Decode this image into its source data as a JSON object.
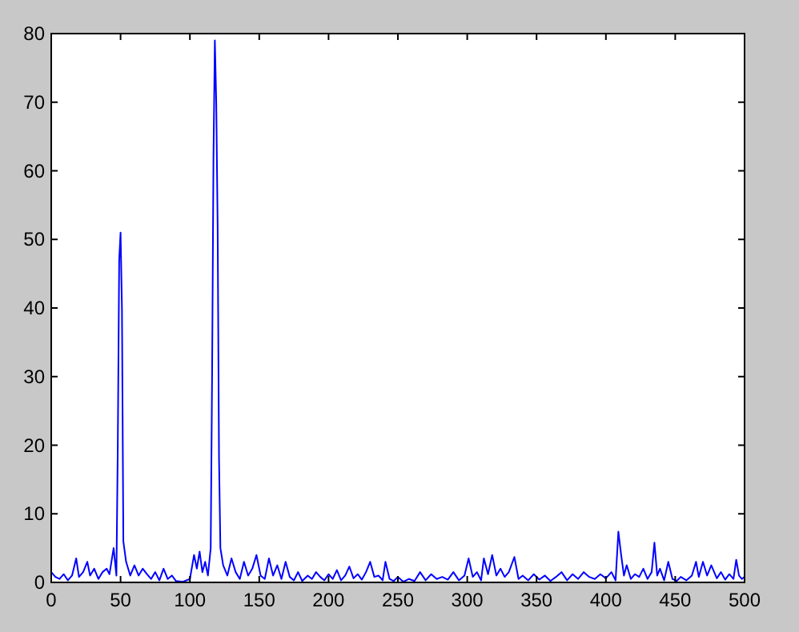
{
  "chart_data": {
    "type": "line",
    "xlim": [
      0,
      500
    ],
    "ylim": [
      0,
      80
    ],
    "xticks": [
      0,
      50,
      100,
      150,
      200,
      250,
      300,
      350,
      400,
      450,
      500
    ],
    "yticks": [
      0,
      10,
      20,
      30,
      40,
      50,
      60,
      70,
      80
    ],
    "grid": false,
    "marker": "none",
    "line_style": "solid",
    "series": [
      {
        "color": "#0000ff",
        "x": [
          0,
          3,
          6,
          9,
          12,
          15,
          18,
          20,
          23,
          26,
          28,
          31,
          34,
          37,
          40,
          42,
          45,
          47,
          48,
          49,
          50,
          51,
          52,
          54,
          57,
          60,
          63,
          66,
          69,
          72,
          75,
          78,
          81,
          84,
          87,
          90,
          95,
          100,
          103,
          105,
          107,
          109,
          111,
          113,
          115,
          116,
          117,
          118,
          119,
          120,
          121,
          122,
          124,
          127,
          130,
          133,
          136,
          139,
          142,
          145,
          148,
          151,
          154,
          157,
          160,
          163,
          166,
          169,
          172,
          175,
          178,
          181,
          185,
          188,
          191,
          194,
          197,
          200,
          203,
          206,
          209,
          212,
          215,
          218,
          221,
          224,
          227,
          230,
          233,
          236,
          239,
          241,
          244,
          247,
          250,
          254,
          258,
          262,
          266,
          270,
          274,
          278,
          282,
          286,
          290,
          294,
          298,
          301,
          304,
          307,
          310,
          312,
          315,
          318,
          321,
          324,
          327,
          330,
          334,
          337,
          340,
          344,
          348,
          352,
          356,
          360,
          364,
          368,
          372,
          376,
          380,
          384,
          388,
          392,
          396,
          400,
          404,
          407,
          409,
          411,
          413,
          415,
          418,
          421,
          424,
          427,
          430,
          433,
          435,
          437,
          439,
          442,
          445,
          448,
          451,
          454,
          458,
          462,
          465,
          467,
          470,
          473,
          476,
          480,
          483,
          486,
          489,
          492,
          494,
          496,
          498,
          500
        ],
        "values": [
          1.5,
          0.8,
          0.5,
          1.2,
          0.3,
          1.0,
          3.5,
          0.8,
          1.5,
          3.0,
          1.0,
          2.0,
          0.5,
          1.5,
          2.0,
          1.2,
          5.0,
          1.0,
          20,
          47,
          51,
          40,
          6,
          3,
          1.0,
          2.5,
          1.0,
          2.0,
          1.2,
          0.5,
          1.5,
          0.3,
          2.0,
          0.5,
          1.0,
          0.2,
          0.1,
          0.5,
          4.0,
          2.0,
          4.5,
          1.5,
          3.0,
          1.0,
          5,
          30,
          62,
          79,
          70,
          52,
          18,
          5,
          2.5,
          1.0,
          3.5,
          1.5,
          0.5,
          3.0,
          1.0,
          2.0,
          4.0,
          1.0,
          0.5,
          3.5,
          1.0,
          2.5,
          0.5,
          3.0,
          0.8,
          0.3,
          1.5,
          0.2,
          1.0,
          0.5,
          1.5,
          0.8,
          0.3,
          1.2,
          0.5,
          1.8,
          0.3,
          1.0,
          2.3,
          0.6,
          1.2,
          0.4,
          1.5,
          3.0,
          0.8,
          1.0,
          0.3,
          3.0,
          0.5,
          0.2,
          0.8,
          0.1,
          0.5,
          0.2,
          1.5,
          0.3,
          1.2,
          0.5,
          0.8,
          0.4,
          1.5,
          0.3,
          1.0,
          3.5,
          0.8,
          1.5,
          0.3,
          3.5,
          1.2,
          4.0,
          1.0,
          2.0,
          0.8,
          1.5,
          3.7,
          0.5,
          1.0,
          0.3,
          1.2,
          0.4,
          1.0,
          0.2,
          0.8,
          1.5,
          0.3,
          1.2,
          0.5,
          1.5,
          0.8,
          0.5,
          1.2,
          0.6,
          1.5,
          0.3,
          7.4,
          4.0,
          1.0,
          2.5,
          0.5,
          1.2,
          0.8,
          2.0,
          0.5,
          1.5,
          5.8,
          1.0,
          2.0,
          0.3,
          3.0,
          0.5,
          0.2,
          0.8,
          0.3,
          1.0,
          3.0,
          0.8,
          3.0,
          1.0,
          2.5,
          0.6,
          1.5,
          0.4,
          1.2,
          0.5,
          3.3,
          1.0,
          0.5,
          0.8
        ]
      }
    ]
  }
}
